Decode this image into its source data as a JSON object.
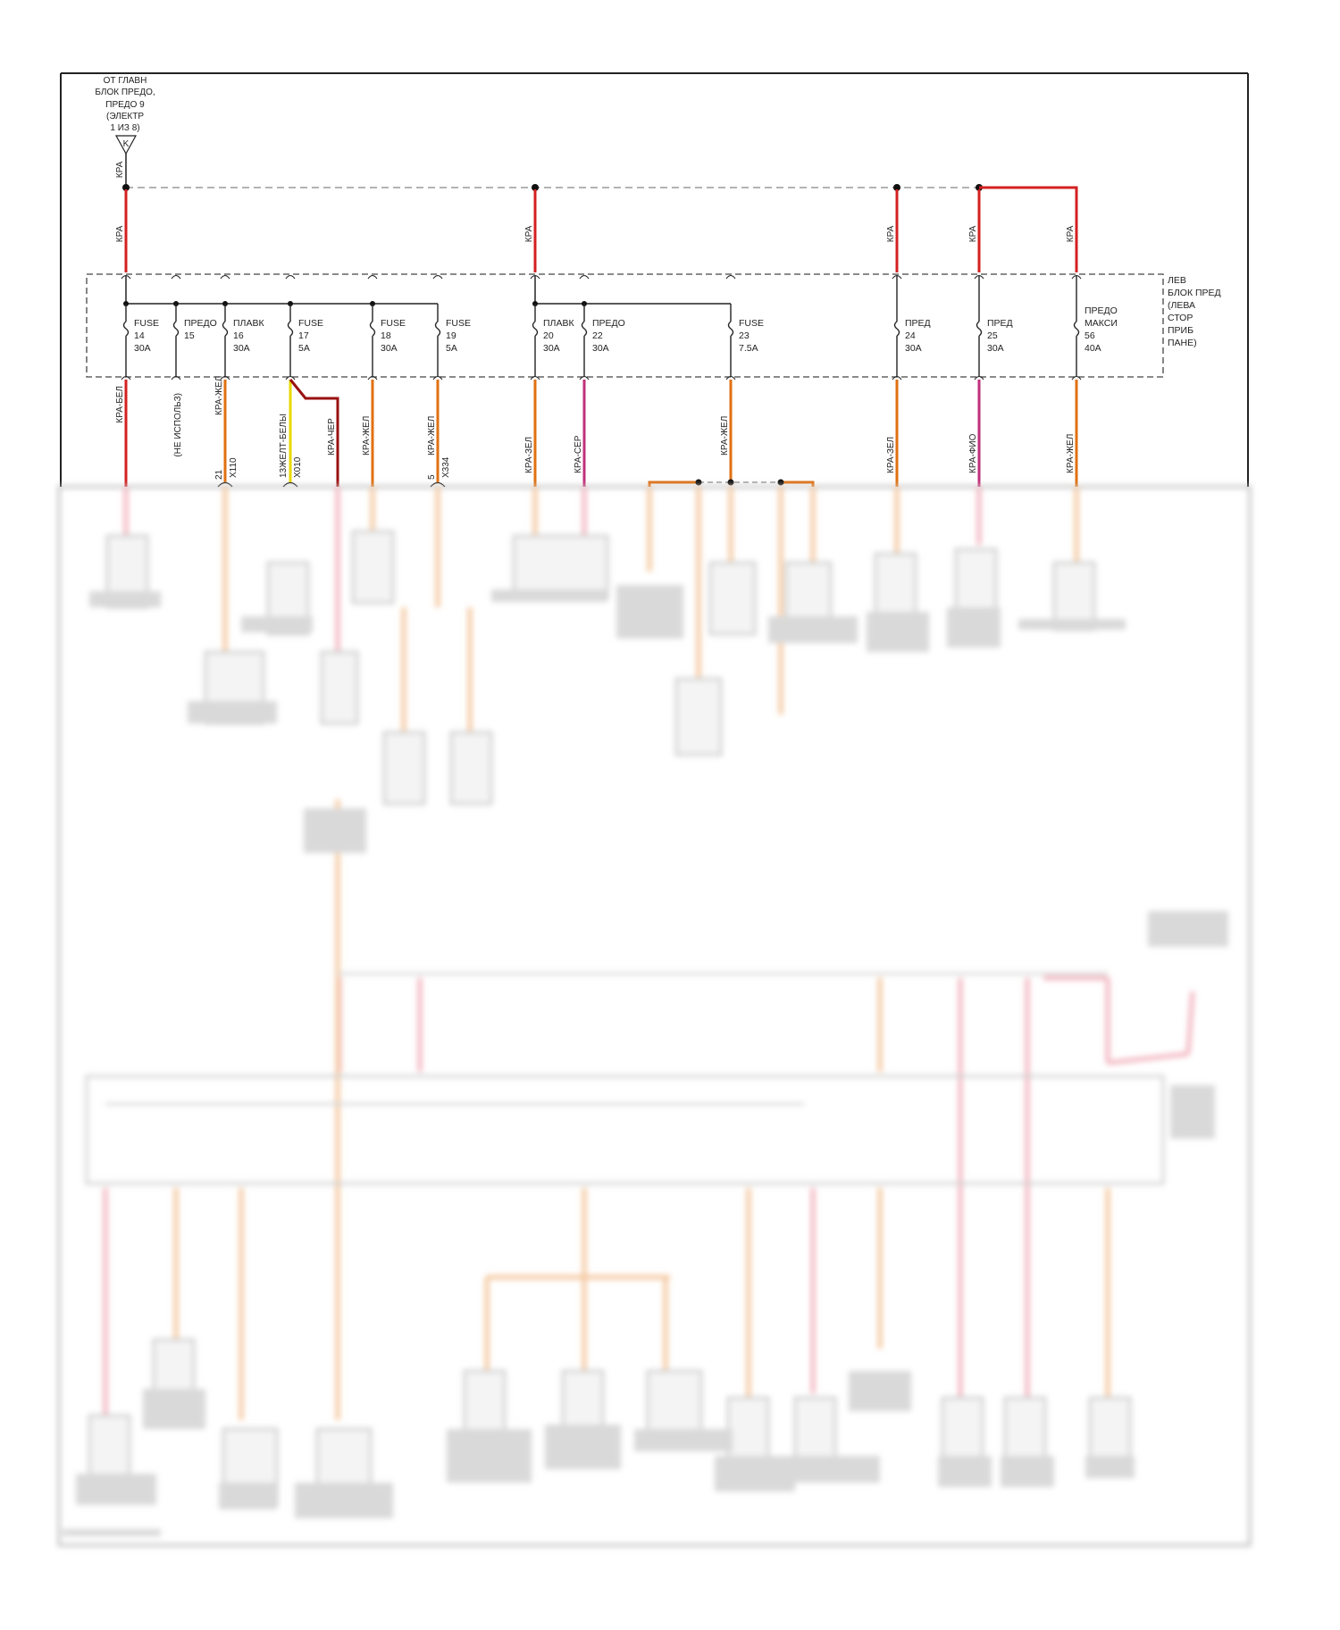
{
  "source": {
    "lines": [
      "ОТ ГЛАВН",
      "БЛОК ПРЕДО,",
      "ПРЕДО 9",
      "(ЭЛЕКТР",
      "1 ИЗ 8)"
    ],
    "connector": "K",
    "wire": "КРА"
  },
  "block": {
    "lines": [
      "ЛЕВ",
      "БЛОК ПРЕД",
      "(ЛЕВА",
      "СТОР",
      "ПРИБ",
      "ПАНЕ)"
    ]
  },
  "feed_wires": [
    "КРА",
    "КРА",
    "КРА",
    "КРА",
    "КРА"
  ],
  "fuses": [
    {
      "name": "FUSE",
      "num": "14",
      "rating": "30A",
      "out_wire": "КРА-БЕЛ"
    },
    {
      "name": "ПРЕДО",
      "num": "15",
      "rating": "",
      "out_wire": "(НЕ ИСПОЛЬЗ)"
    },
    {
      "name": "ПЛАВК",
      "num": "16",
      "rating": "30A",
      "out_wire": "КРА-ЖЕЛ",
      "pin": "21",
      "conn": "X110"
    },
    {
      "name": "FUSE",
      "num": "17",
      "rating": "5A",
      "out_wire": "13ЖЕЛТ-БЕЛЫ",
      "conn": "X010",
      "out_wire_2": "КРА-ЧЕР"
    },
    {
      "name": "FUSE",
      "num": "18",
      "rating": "30A",
      "out_wire": "КРА-ЖЕЛ"
    },
    {
      "name": "FUSE",
      "num": "19",
      "rating": "5A",
      "out_wire": "КРА-ЖЕЛ",
      "pin": "5",
      "conn": "X334"
    },
    {
      "name": "ПЛАВК",
      "num": "20",
      "rating": "30A",
      "out_wire": "КРА-ЗЕЛ"
    },
    {
      "name": "ПРЕДО",
      "num": "22",
      "rating": "30A",
      "out_wire": "КРА-СЕР"
    },
    {
      "name": "FUSE",
      "num": "23",
      "rating": "7.5A",
      "out_wire": "КРА-ЖЕЛ"
    },
    {
      "name": "ПРЕД",
      "num": "24",
      "rating": "30A",
      "out_wire": "КРА-ЗЕЛ"
    },
    {
      "name": "ПРЕД",
      "num": "25",
      "rating": "30A",
      "out_wire": "КРА-ФИО"
    },
    {
      "name": "ПРЕДО МАКСИ",
      "num": "56",
      "rating": "40A",
      "out_wire": "КРА-ЖЕЛ"
    }
  ],
  "colors": {
    "frame": "#222222",
    "red": "#d42020",
    "orange": "#e07010",
    "yellow": "#e8d800",
    "magenta": "#c0307a",
    "darkred": "#9a1010",
    "dashed_bus": "#9a9a9a",
    "blurred_pink": "#f2b6c0",
    "blurred_orange": "#f5c8a0",
    "blurred_gray": "#d8d8d8"
  }
}
